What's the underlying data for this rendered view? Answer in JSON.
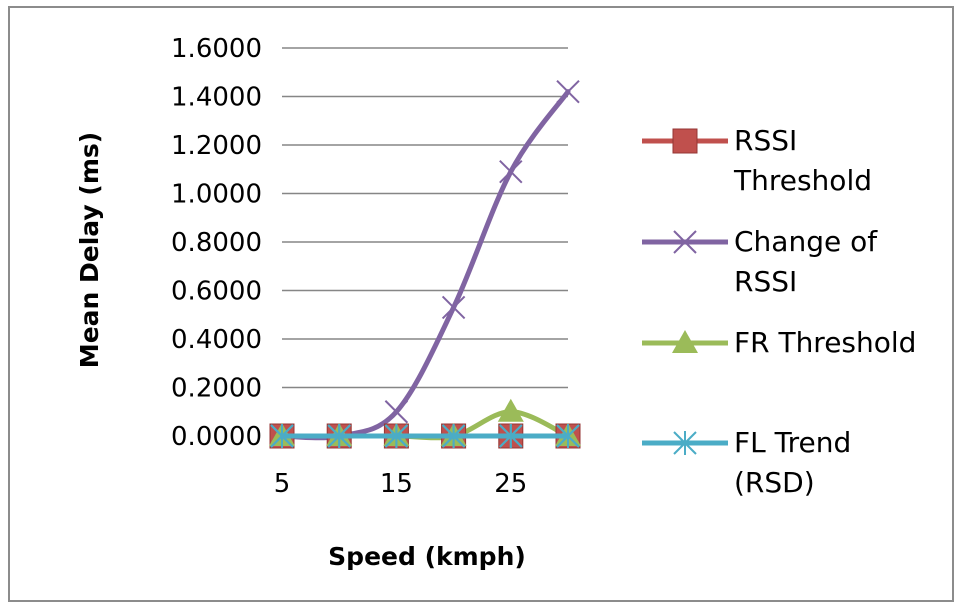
{
  "chart_data": {
    "type": "line",
    "title": "",
    "xlabel": "Speed (kmph)",
    "ylabel": "Mean Delay (ms)",
    "x": [
      5,
      10,
      15,
      20,
      25,
      30
    ],
    "x_tick_labels": [
      "5",
      "15",
      "25"
    ],
    "x_tick_values": [
      5,
      15,
      25
    ],
    "ylim": [
      0,
      1.6
    ],
    "y_ticks": [
      0,
      0.2,
      0.4,
      0.6,
      0.8,
      1.0,
      1.2,
      1.4,
      1.6
    ],
    "y_tick_labels": [
      "0.0000",
      "0.2000",
      "0.4000",
      "0.6000",
      "0.8000",
      "1.0000",
      "1.2000",
      "1.4000",
      "1.6000"
    ],
    "grid": "horizontal",
    "legend_position": "right",
    "series": [
      {
        "name": "RSSI Threshold",
        "legend_lines": [
          "RSSI",
          "Threshold"
        ],
        "values": [
          0,
          0,
          0,
          0,
          0,
          0
        ],
        "color": "#c0504d",
        "marker": "square"
      },
      {
        "name": "Change of RSSI",
        "legend_lines": [
          "Change of",
          "RSSI"
        ],
        "values": [
          0,
          0,
          0.1,
          0.53,
          1.09,
          1.42
        ],
        "color": "#8064a2",
        "marker": "x"
      },
      {
        "name": "FR Threshold",
        "legend_lines": [
          "FR Threshold"
        ],
        "values": [
          0,
          0,
          0,
          0,
          0.1,
          0
        ],
        "color": "#9bbb59",
        "marker": "triangle"
      },
      {
        "name": "FL Trend (RSD)",
        "legend_lines": [
          "FL Trend",
          "(RSD)"
        ],
        "values": [
          0,
          0,
          0,
          0,
          0,
          0
        ],
        "color": "#4bacc6",
        "marker": "star"
      }
    ]
  }
}
